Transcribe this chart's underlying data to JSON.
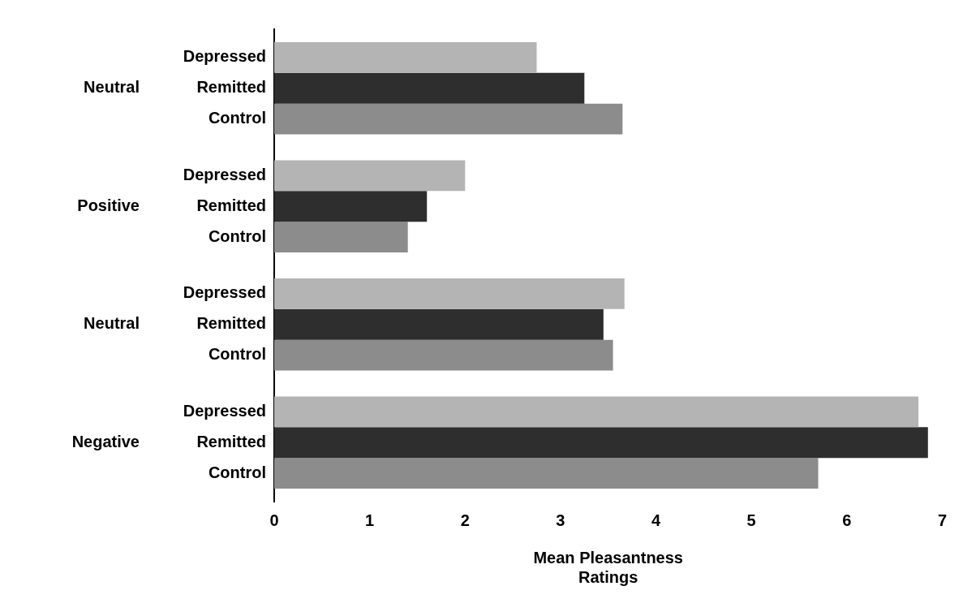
{
  "chart_data": {
    "type": "bar",
    "orientation": "horizontal",
    "xlabel": "Mean Pleasantness Ratings",
    "categories": [
      "Neutral",
      "Positive",
      "Neutral",
      "Negative"
    ],
    "series": [
      {
        "name": "Depressed",
        "color": "#b4b4b4",
        "values": [
          2.75,
          2.0,
          3.67,
          6.75
        ]
      },
      {
        "name": "Remitted",
        "color": "#2e2e2e",
        "values": [
          3.25,
          1.6,
          3.45,
          6.85
        ]
      },
      {
        "name": "Control",
        "color": "#8c8c8c",
        "values": [
          3.65,
          1.4,
          3.55,
          5.7
        ]
      }
    ],
    "xlim": [
      0,
      7
    ],
    "xticks": [
      0,
      1,
      2,
      3,
      4,
      5,
      6,
      7
    ],
    "grid": false,
    "legend": false
  }
}
